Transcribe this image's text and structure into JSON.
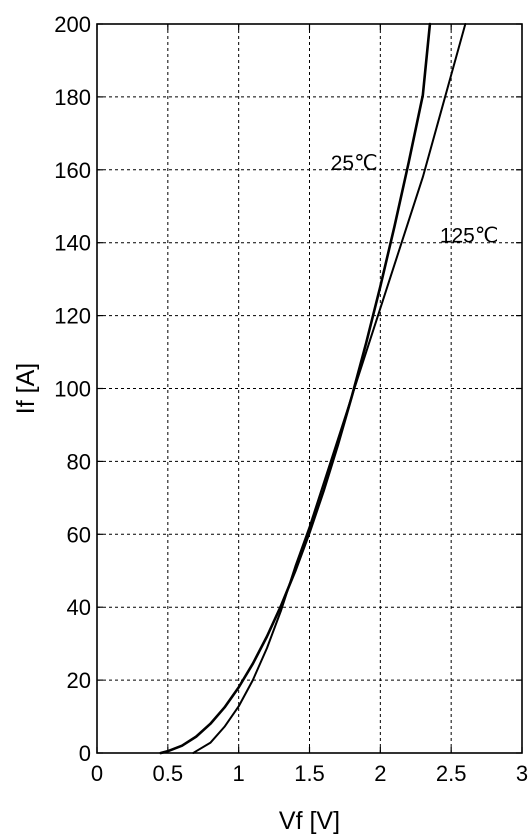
{
  "chart_data": {
    "type": "line",
    "title": "",
    "xlabel": "Vf [V]",
    "ylabel": "If [A]",
    "xlim": [
      0,
      3
    ],
    "ylim": [
      0,
      200
    ],
    "xticks": [
      0,
      0.5,
      1,
      1.5,
      2,
      2.5,
      3
    ],
    "xtick_labels": [
      "0",
      "0.5",
      "1",
      "1.5",
      "2",
      "2.5",
      "3"
    ],
    "yticks": [
      0,
      20,
      40,
      60,
      80,
      100,
      120,
      140,
      160,
      180,
      200
    ],
    "ytick_labels": [
      "0",
      "20",
      "40",
      "60",
      "80",
      "100",
      "120",
      "140",
      "160",
      "180",
      "200"
    ],
    "grid": true,
    "series": [
      {
        "name": "25℃",
        "x": [
          0.45,
          0.5,
          0.6,
          0.7,
          0.8,
          0.9,
          1.0,
          1.1,
          1.2,
          1.3,
          1.4,
          1.5,
          1.6,
          1.7,
          1.8,
          1.9,
          2.0,
          2.1,
          2.2,
          2.3,
          2.35
        ],
        "y": [
          0,
          0.5,
          2,
          4.5,
          8,
          12.5,
          18,
          24.5,
          32,
          40.5,
          50,
          60.5,
          72,
          84.5,
          98,
          112.5,
          128,
          144.5,
          162,
          180.5,
          200
        ]
      },
      {
        "name": "125℃",
        "x": [
          0.68,
          0.7,
          0.8,
          0.9,
          1.0,
          1.1,
          1.2,
          1.3,
          1.4,
          1.5,
          1.6,
          1.7,
          1.8,
          1.9,
          2.0,
          2.1,
          2.2,
          2.3,
          2.4,
          2.5,
          2.6
        ],
        "y": [
          0,
          0.5,
          2.8,
          7.2,
          12.8,
          20,
          28.8,
          39.2,
          51.2,
          62,
          74,
          86,
          98,
          110,
          122,
          134,
          146,
          158,
          172,
          186,
          200
        ]
      }
    ],
    "annotations": [
      {
        "text": "25℃",
        "series": 0
      },
      {
        "text": "125℃",
        "series": 1
      }
    ]
  }
}
